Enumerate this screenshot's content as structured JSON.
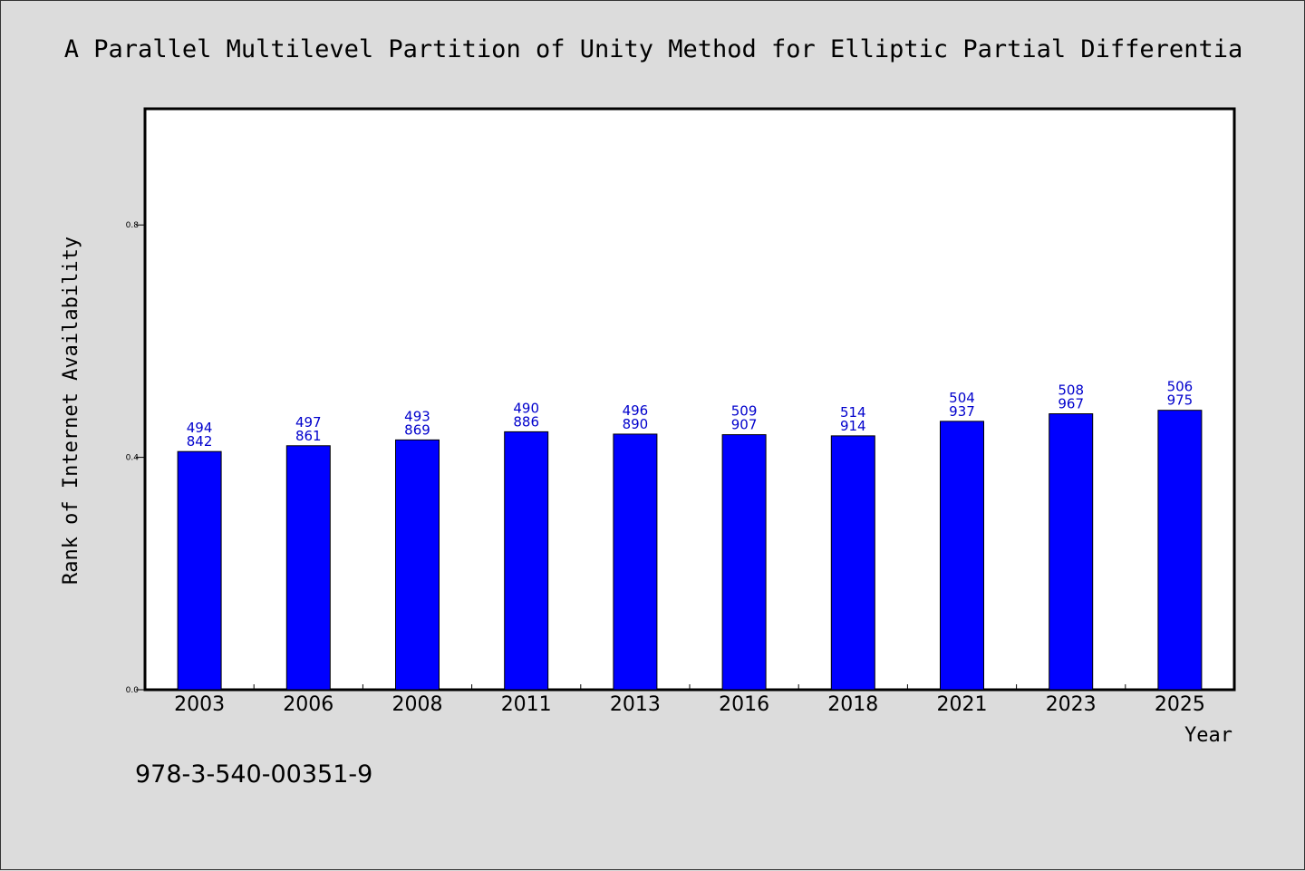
{
  "footer_code": "978-3-540-00351-9",
  "chart_data": {
    "type": "bar",
    "title": "A Parallel Multilevel Partition of Unity Method for Elliptic Partial Differentia",
    "xlabel": "Year",
    "ylabel": "Rank of Internet Availability",
    "categories": [
      "2003",
      "2006",
      "2008",
      "2011",
      "2013",
      "2016",
      "2018",
      "2021",
      "2023",
      "2025"
    ],
    "values": [
      0.41,
      0.42,
      0.43,
      0.444,
      0.44,
      0.439,
      0.437,
      0.462,
      0.475,
      0.481
    ],
    "label_top": [
      "494",
      "497",
      "493",
      "490",
      "496",
      "509",
      "514",
      "504",
      "508",
      "506"
    ],
    "label_bottom": [
      "842",
      "861",
      "869",
      "886",
      "890",
      "907",
      "914",
      "937",
      "967",
      "975"
    ],
    "ylim": [
      0,
      1.0
    ],
    "yticks": [
      0.0,
      0.4,
      0.8
    ],
    "ytick_labels": [
      "0.0",
      "0.4",
      "0.8"
    ],
    "bar_color": "#0000ff",
    "label_color": "#0000cc",
    "grid": false,
    "legend": "none"
  }
}
